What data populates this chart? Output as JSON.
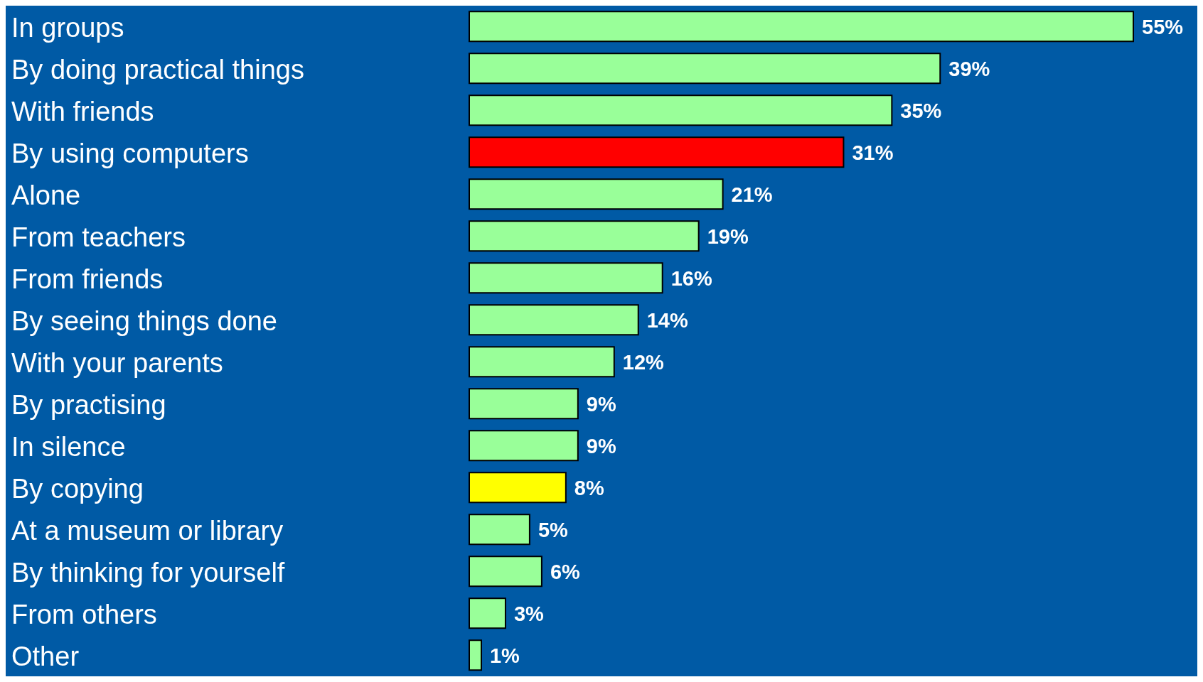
{
  "chart_data": {
    "type": "bar",
    "orientation": "horizontal",
    "categories": [
      "In groups",
      "By doing practical things",
      "With friends",
      "By using computers",
      "Alone",
      "From teachers",
      "From friends",
      "By seeing things done",
      "With your parents",
      "By practising",
      "In silence",
      "By copying",
      "At a museum or library",
      "By thinking for yourself",
      "From others",
      "Other"
    ],
    "values": [
      55,
      39,
      35,
      31,
      21,
      19,
      16,
      14,
      12,
      9,
      9,
      8,
      5,
      6,
      3,
      1
    ],
    "value_labels": [
      "55%",
      "39%",
      "35%",
      "31%",
      "21%",
      "19%",
      "16%",
      "14%",
      "12%",
      "9%",
      "9%",
      "8%",
      "5%",
      "6%",
      "3%",
      "1%"
    ],
    "colors": [
      "#99ff99",
      "#99ff99",
      "#99ff99",
      "#ff0000",
      "#99ff99",
      "#99ff99",
      "#99ff99",
      "#99ff99",
      "#99ff99",
      "#99ff99",
      "#99ff99",
      "#ffff00",
      "#99ff99",
      "#99ff99",
      "#99ff99",
      "#99ff99"
    ],
    "grid": false,
    "legend": false
  }
}
